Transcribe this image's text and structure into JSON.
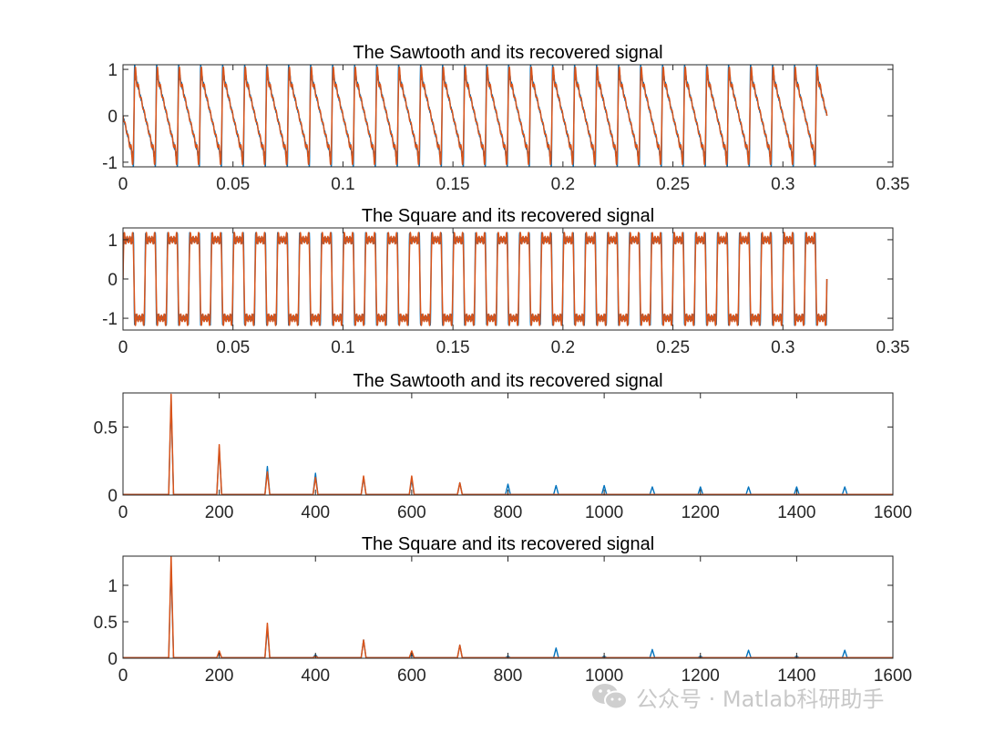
{
  "colors": {
    "blue": "#0072BD",
    "orange": "#D95319",
    "axis": "#262626"
  },
  "watermark": {
    "text": "公众号 · Matlab科研助手",
    "icon": "wechat-icon"
  },
  "chart_data": [
    {
      "type": "line",
      "kind": "sawtooth",
      "title": "The Sawtooth and its recovered signal",
      "xlim": [
        0,
        0.35
      ],
      "ylim": [
        -1.1,
        1.1
      ],
      "xticks": [
        0,
        0.05,
        0.1,
        0.15,
        0.2,
        0.25,
        0.3,
        0.35
      ],
      "xticklabels": [
        "0",
        "0.05",
        "0.1",
        "0.15",
        "0.2",
        "0.25",
        "0.3",
        "0.35"
      ],
      "yticks": [
        -1,
        0,
        1
      ],
      "yticklabels": [
        "-1",
        "0",
        "1"
      ],
      "signal": {
        "period": 0.01,
        "amplitude": 1,
        "duration": 0.32
      },
      "series": [
        {
          "color": "#0072BD",
          "harmonics": [
            1,
            2,
            3,
            4,
            5,
            6,
            7,
            8,
            9,
            10,
            11,
            12,
            13,
            14,
            15
          ]
        },
        {
          "color": "#D95319",
          "harmonics": [
            1,
            2,
            3,
            4,
            5,
            6,
            7
          ]
        }
      ]
    },
    {
      "type": "line",
      "kind": "square",
      "title": "The Square and its recovered signal",
      "xlim": [
        0,
        0.35
      ],
      "ylim": [
        -1.3,
        1.3
      ],
      "xticks": [
        0,
        0.05,
        0.1,
        0.15,
        0.2,
        0.25,
        0.3,
        0.35
      ],
      "xticklabels": [
        "0",
        "0.05",
        "0.1",
        "0.15",
        "0.2",
        "0.25",
        "0.3",
        "0.35"
      ],
      "yticks": [
        -1,
        0,
        1
      ],
      "yticklabels": [
        "-1",
        "0",
        "1"
      ],
      "signal": {
        "period": 0.01,
        "amplitude": 1,
        "duration": 0.32
      },
      "series": [
        {
          "color": "#0072BD",
          "harmonics": [
            1,
            3,
            5,
            7,
            9,
            11,
            13,
            15
          ]
        },
        {
          "color": "#D95319",
          "harmonics": [
            1,
            3,
            5,
            7
          ]
        }
      ]
    },
    {
      "type": "line",
      "kind": "spectrum",
      "title": "The Sawtooth and its recovered signal",
      "xlim": [
        0,
        1600
      ],
      "ylim": [
        0,
        0.75
      ],
      "xticks": [
        0,
        200,
        400,
        600,
        800,
        1000,
        1200,
        1400,
        1600
      ],
      "xticklabels": [
        "0",
        "200",
        "400",
        "600",
        "800",
        "1000",
        "1200",
        "1400",
        "1600"
      ],
      "yticks": [
        0,
        0.5
      ],
      "yticklabels": [
        "0",
        "0.5"
      ],
      "series": [
        {
          "color": "#0072BD",
          "x": [
            100,
            200,
            300,
            400,
            500,
            600,
            700,
            800,
            900,
            1000,
            1100,
            1200,
            1300,
            1400,
            1500
          ],
          "y": [
            0.7,
            0.35,
            0.21,
            0.16,
            0.13,
            0.11,
            0.09,
            0.08,
            0.07,
            0.07,
            0.06,
            0.06,
            0.06,
            0.06,
            0.06
          ]
        },
        {
          "color": "#D95319",
          "x": [
            100,
            200,
            300,
            400,
            500,
            600,
            700
          ],
          "y": [
            0.74,
            0.37,
            0.17,
            0.13,
            0.14,
            0.14,
            0.09
          ]
        }
      ]
    },
    {
      "type": "line",
      "kind": "spectrum",
      "title": "The Square and its recovered signal",
      "xlim": [
        0,
        1600
      ],
      "ylim": [
        0,
        1.4
      ],
      "xticks": [
        0,
        200,
        400,
        600,
        800,
        1000,
        1200,
        1400,
        1600
      ],
      "xticklabels": [
        "0",
        "200",
        "400",
        "600",
        "800",
        "1000",
        "1200",
        "1400",
        "1600"
      ],
      "yticks": [
        0,
        0.5,
        1
      ],
      "yticklabels": [
        "0",
        "0.5",
        "1"
      ],
      "series": [
        {
          "color": "#0072BD",
          "x": [
            100,
            200,
            300,
            400,
            500,
            600,
            700,
            800,
            900,
            1000,
            1100,
            1200,
            1300,
            1400,
            1500
          ],
          "y": [
            1.27,
            0.08,
            0.42,
            0.05,
            0.25,
            0.05,
            0.18,
            0.03,
            0.14,
            0.03,
            0.12,
            0.03,
            0.11,
            0.03,
            0.11
          ]
        },
        {
          "color": "#D95319",
          "x": [
            100,
            200,
            300,
            400,
            500,
            600,
            700
          ],
          "y": [
            1.4,
            0.1,
            0.48,
            0.03,
            0.25,
            0.1,
            0.18
          ]
        }
      ]
    }
  ]
}
